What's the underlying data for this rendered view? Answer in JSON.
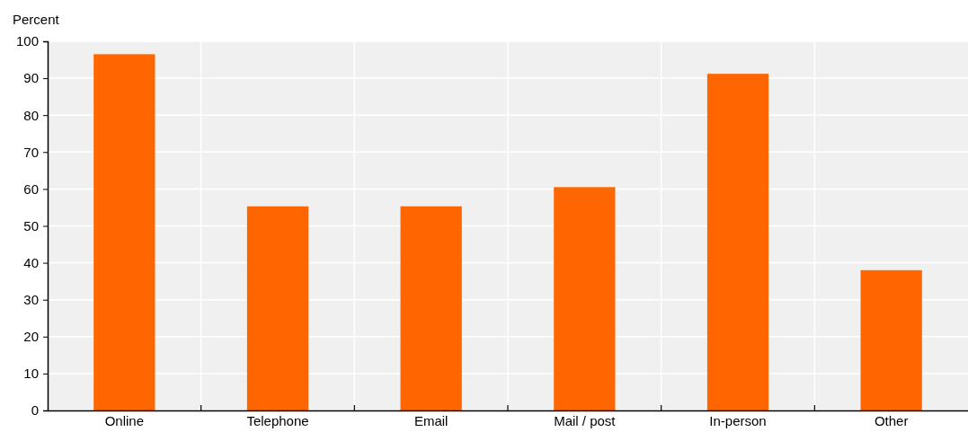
{
  "chart_data": {
    "type": "bar",
    "ylabel": "Percent",
    "categories": [
      "Online",
      "Telephone",
      "Email",
      "Mail / post",
      "In-person",
      "Other"
    ],
    "values": [
      96.5,
      55.3,
      55.3,
      60.5,
      91.2,
      38.0
    ],
    "color": "#ff6600",
    "ylim": [
      0,
      100
    ],
    "yticks": [
      0,
      10,
      20,
      30,
      40,
      50,
      60,
      70,
      80,
      90,
      100
    ],
    "grid": true
  }
}
